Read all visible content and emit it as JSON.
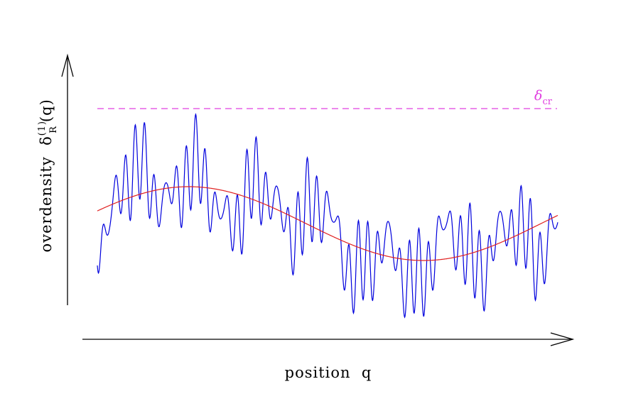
{
  "labels": {
    "x_axis": "position  q",
    "y_axis_main": "overdensity  δ",
    "y_axis_sup": "(1)",
    "y_axis_sub": "R",
    "y_axis_arg": "(q)",
    "critical_symbol": "δ",
    "critical_sub": "cr"
  },
  "colors": {
    "field": "#0000dd",
    "smoothed": "#e02020",
    "critical": "#e040e0",
    "axes": "#000000"
  },
  "chart_data": {
    "type": "line",
    "xlabel": "position q",
    "ylabel": "overdensity δ_R^(1)(q)",
    "series": [
      {
        "name": "",
        "description_color": "blue",
        "kind": "fluctuating"
      },
      {
        "name": "",
        "description_color": "red",
        "kind": "smooth"
      }
    ],
    "reference_lines": [
      {
        "label": "δcr",
        "style": "dashed"
      }
    ],
    "grid": false
  }
}
